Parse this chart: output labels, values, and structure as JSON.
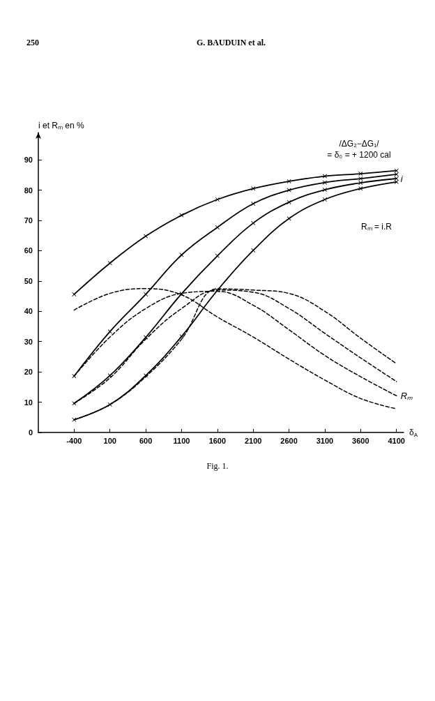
{
  "chart_data": {
    "type": "line",
    "xlabel": "δ$_{A}$",
    "ylabel": "i et Rₘ en %",
    "x": [
      -400,
      100,
      600,
      1100,
      1600,
      2100,
      2600,
      3100,
      3600,
      4100
    ],
    "xlim": [
      -900,
      4200
    ],
    "xticks": [
      -400,
      100,
      600,
      1100,
      1600,
      2100,
      2600,
      3100,
      3600,
      4100
    ],
    "ylim": [
      0,
      99
    ],
    "yticks": [
      0,
      10,
      20,
      30,
      40,
      50,
      60,
      70,
      80,
      90
    ],
    "series": [
      {
        "color": "#000000",
        "line_style": "solid",
        "marker": "cross",
        "values": [
          45.6,
          55.9,
          64.8,
          71.7,
          76.9,
          80.5,
          82.9,
          84.6,
          85.4,
          86.4
        ]
      },
      {
        "color": "#000000",
        "line_style": "solid",
        "marker": "cross",
        "values": [
          18.6,
          33.3,
          45.6,
          58.6,
          67.7,
          75.5,
          80.0,
          82.5,
          83.8,
          85.2
        ]
      },
      {
        "name": "i",
        "color": "#000000",
        "line_style": "solid",
        "marker": "cross",
        "values": [
          9.6,
          18.8,
          31.4,
          45.8,
          58.3,
          69.1,
          76.0,
          80.1,
          82.4,
          83.8
        ]
      },
      {
        "color": "#000000",
        "line_style": "solid",
        "marker": "cross",
        "values": [
          4.2,
          9.2,
          18.8,
          31.7,
          46.9,
          60.1,
          70.6,
          76.9,
          80.5,
          82.7
        ]
      },
      {
        "color": "#000000",
        "line_style": "dashed",
        "marker": "none",
        "values": [
          40.4,
          45.9,
          47.5,
          45.4,
          38.1,
          31.5,
          24.2,
          17.3,
          11.2,
          7.8
        ]
      },
      {
        "name": "Rₘ",
        "color": "#000000",
        "line_style": "dashed",
        "marker": "none",
        "values": [
          18.6,
          31.5,
          40.9,
          45.9,
          46.6,
          42.0,
          33.9,
          25.4,
          18.4,
          12.1
        ]
      },
      {
        "color": "#000000",
        "line_style": "dashed",
        "marker": "none",
        "values": [
          9.6,
          18.0,
          30.8,
          40.9,
          47.0,
          46.3,
          40.9,
          32.7,
          24.6,
          16.8
        ]
      },
      {
        "color": "#000000",
        "line_style": "dashed",
        "marker": "none",
        "values": [
          4.2,
          9.2,
          18.4,
          30.8,
          47.4,
          47.0,
          45.9,
          40.0,
          31.1,
          22.7
        ]
      }
    ],
    "annotations": [
      "250",
      "G. BAUDUIN et al.",
      "Fig. 1.",
      "/ΔG₂−ΔG₁/\n= δ₀ = + 1200 cal",
      "Rₘ = i.R"
    ]
  }
}
